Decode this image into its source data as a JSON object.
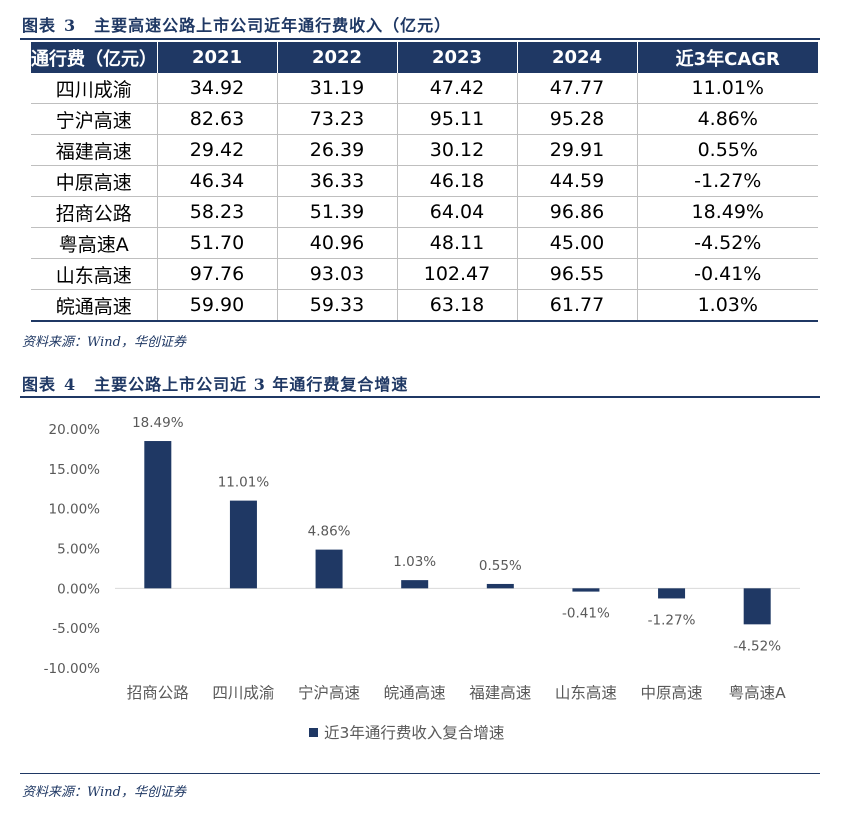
{
  "table_caption": {
    "label": "图表",
    "number": "3",
    "title": "主要高速公路上市公司近年通行费收入（亿元）"
  },
  "table": {
    "headers": [
      "通行费（亿元）",
      "2021",
      "2022",
      "2023",
      "2024",
      "近3年CAGR"
    ],
    "rows": [
      [
        "四川成渝",
        "34.92",
        "31.19",
        "47.42",
        "47.77",
        "11.01%"
      ],
      [
        "宁沪高速",
        "82.63",
        "73.23",
        "95.11",
        "95.28",
        "4.86%"
      ],
      [
        "福建高速",
        "29.42",
        "26.39",
        "30.12",
        "29.91",
        "0.55%"
      ],
      [
        "中原高速",
        "46.34",
        "36.33",
        "46.18",
        "44.59",
        "-1.27%"
      ],
      [
        "招商公路",
        "58.23",
        "51.39",
        "64.04",
        "96.86",
        "18.49%"
      ],
      [
        "粤高速A",
        "51.70",
        "40.96",
        "48.11",
        "45.00",
        "-4.52%"
      ],
      [
        "山东高速",
        "97.76",
        "93.03",
        "102.47",
        "96.55",
        "-0.41%"
      ],
      [
        "皖通高速",
        "59.90",
        "59.33",
        "63.18",
        "61.77",
        "1.03%"
      ]
    ]
  },
  "source_1": "资料来源：Wind，华创证券",
  "chart_caption": {
    "label": "图表",
    "number": "4",
    "title": "主要公路上市公司近 3 年通行费复合增速"
  },
  "chart_data": {
    "type": "bar",
    "categories": [
      "招商公路",
      "四川成渝",
      "宁沪高速",
      "皖通高速",
      "福建高速",
      "山东高速",
      "中原高速",
      "粤高速A"
    ],
    "series": [
      {
        "name": "近3年通行费收入复合增速",
        "values": [
          18.49,
          11.01,
          4.86,
          1.03,
          0.55,
          -0.41,
          -1.27,
          -4.52
        ]
      }
    ],
    "data_labels": [
      "18.49%",
      "11.01%",
      "4.86%",
      "1.03%",
      "0.55%",
      "-0.41%",
      "-1.27%",
      "-4.52%"
    ],
    "yticks": [
      "20.00%",
      "15.00%",
      "10.00%",
      "5.00%",
      "0.00%",
      "-5.00%",
      "-10.00%"
    ],
    "ytick_values": [
      20,
      15,
      10,
      5,
      0,
      -5,
      -10
    ],
    "ylim": [
      -10,
      20
    ],
    "legend_position": "bottom",
    "grid": false,
    "bar_color": "#1f3864"
  },
  "source_2": "资料来源：Wind，华创证券"
}
